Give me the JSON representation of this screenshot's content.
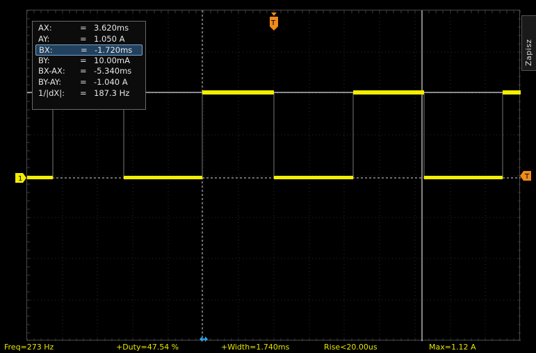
{
  "side_button": {
    "label": "Zapisz"
  },
  "cursors": [
    {
      "label": "AX:",
      "value": "3.620ms",
      "selected": false
    },
    {
      "label": "AY:",
      "value": "1.050 A",
      "selected": false
    },
    {
      "label": "BX:",
      "value": "-1.720ms",
      "selected": true
    },
    {
      "label": "BY:",
      "value": "10.00mA",
      "selected": false
    },
    {
      "label": "BX-AX:",
      "value": "-5.340ms",
      "selected": false
    },
    {
      "label": "BY-AY:",
      "value": "-1.040 A",
      "selected": false
    },
    {
      "label": "1/|dX|:",
      "value": "187.3 Hz",
      "selected": false
    }
  ],
  "equals": "=",
  "markers": {
    "channel": "1",
    "trigger": "T"
  },
  "measurements": {
    "freq": "Freq=273 Hz",
    "duty": "+Duty=47.54 %",
    "width": "+Width=1.740ms",
    "rise": "Rise<20.00us",
    "max": "Max=1.12 A"
  },
  "colors": {
    "trace": "#f2ee00",
    "trigger": "#f08a1a",
    "cursor_blue": "#2aa2e8"
  }
}
